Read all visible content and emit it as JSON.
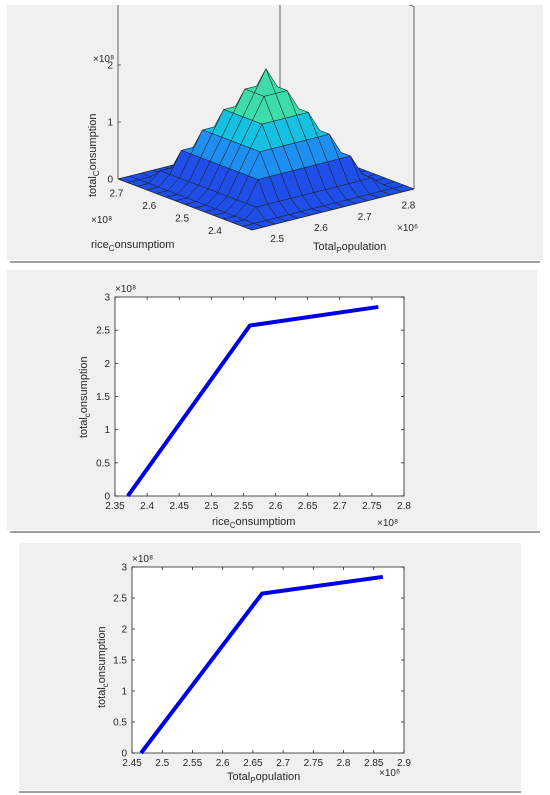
{
  "chart_data": [
    {
      "type": "surface",
      "zlabel": {
        "main": "total",
        "sub": "C",
        "rest": "onsumption"
      },
      "xlabel": {
        "main": "rice",
        "sub": "C",
        "rest": "onsumptiom"
      },
      "ylabel": {
        "main": "Total",
        "sub": "P",
        "rest": "opulation"
      },
      "z_exponent": "×10⁸",
      "x_exponent": "×10⁸",
      "y_exponent": "×10⁶",
      "z_ticks": [
        "0",
        "1",
        "2"
      ],
      "x_ticks": [
        "2.7",
        "2.6",
        "2.5",
        "2.4"
      ],
      "y_ticks": [
        "2.5",
        "2.6",
        "2.7",
        "2.8"
      ],
      "zlim": [
        0,
        2.8
      ],
      "grid_size": 14,
      "colormap": [
        "#1f4fe8",
        "#1e8ff0",
        "#16c0e0",
        "#3ddca8",
        "#a6e83a",
        "#f2f21e"
      ]
    },
    {
      "type": "line",
      "x": [
        2.37,
        2.56,
        2.76
      ],
      "y": [
        0,
        2.57,
        2.85
      ],
      "xlim": [
        2.35,
        2.8
      ],
      "ylim": [
        0,
        3
      ],
      "x_ticks": [
        "2.35",
        "2.4",
        "2.45",
        "2.5",
        "2.55",
        "2.6",
        "2.65",
        "2.7",
        "2.75",
        "2.8"
      ],
      "y_ticks": [
        "0",
        "0.5",
        "1",
        "1.5",
        "2",
        "2.5",
        "3"
      ],
      "x_exponent": "×10⁸",
      "y_exponent": "×10⁸",
      "xlabel": {
        "main": "rice",
        "sub": "C",
        "rest": "onsumptiom"
      },
      "ylabel": {
        "main": "total",
        "sub": "c",
        "rest": "onsumption"
      },
      "color": "#0000e6"
    },
    {
      "type": "line",
      "x": [
        2.465,
        2.665,
        2.865
      ],
      "y": [
        0,
        2.57,
        2.84
      ],
      "xlim": [
        2.45,
        2.9
      ],
      "ylim": [
        0,
        3
      ],
      "x_ticks": [
        "2.45",
        "2.5",
        "2.55",
        "2.6",
        "2.65",
        "2.7",
        "2.75",
        "2.8",
        "2.85",
        "2.9"
      ],
      "y_ticks": [
        "0",
        "0.5",
        "1",
        "1.5",
        "2",
        "2.5",
        "3"
      ],
      "x_exponent": "×10⁶",
      "y_exponent": "×10⁸",
      "xlabel": {
        "main": "Total",
        "sub": "P",
        "rest": "opulation"
      },
      "ylabel": {
        "main": "total",
        "sub": "c",
        "rest": "onsumption"
      },
      "color": "#0000e6"
    }
  ]
}
